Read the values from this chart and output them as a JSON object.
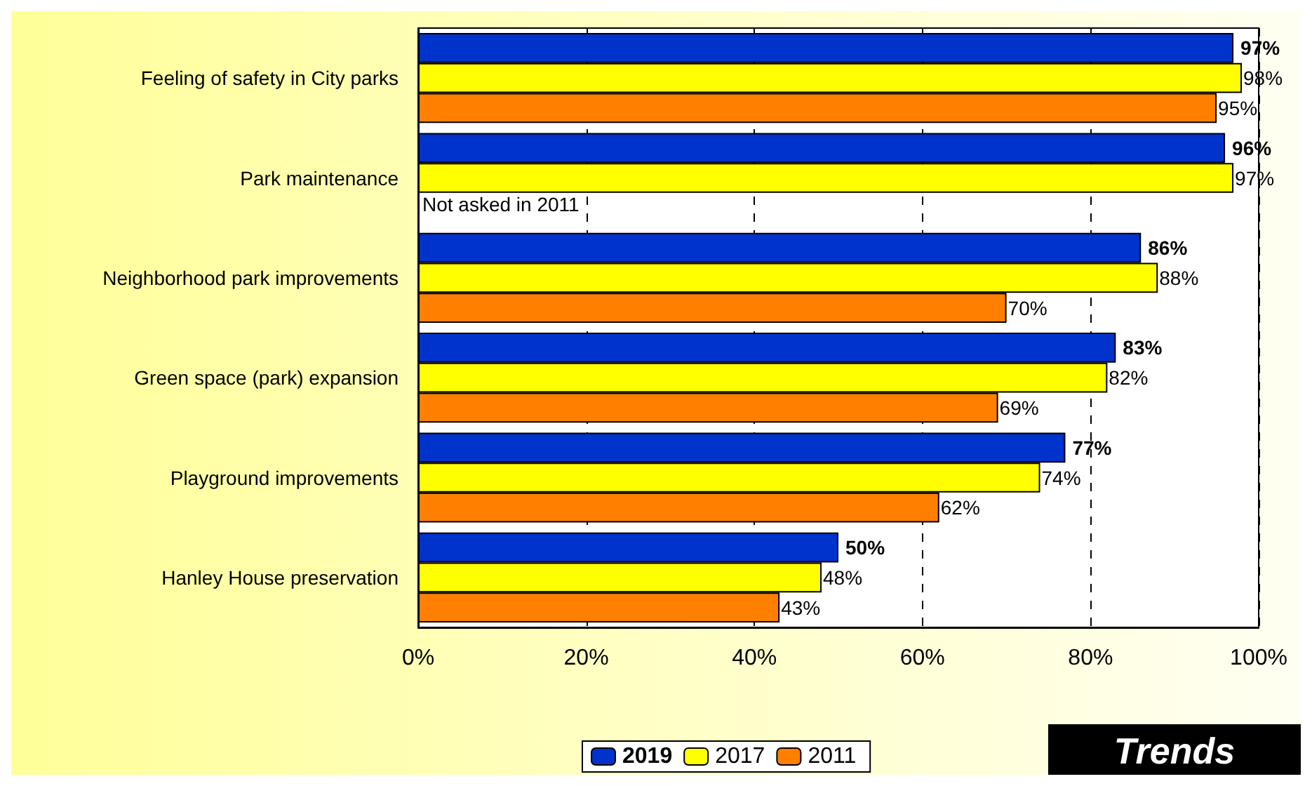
{
  "chart_data": {
    "type": "bar",
    "orientation": "horizontal",
    "categories": [
      "Feeling of safety in City parks",
      "Park maintenance",
      "Neighborhood park improvements",
      "Green space (park) expansion",
      "Playground improvements",
      "Hanley House preservation"
    ],
    "series": [
      {
        "name": "2019",
        "color": "#0033cc",
        "values": [
          97,
          96,
          86,
          83,
          77,
          50
        ],
        "value_labels": [
          "97%",
          "96%",
          "86%",
          "83%",
          "77%",
          "50%"
        ]
      },
      {
        "name": "2017",
        "color": "#ffff00",
        "values": [
          98,
          97,
          88,
          82,
          74,
          48
        ],
        "value_labels": [
          "98%",
          "97%",
          "88%",
          "82%",
          "74%",
          "48%"
        ]
      },
      {
        "name": "2011",
        "color": "#ff8000",
        "values": [
          95,
          null,
          70,
          69,
          62,
          43
        ],
        "value_labels": [
          "95%",
          null,
          "70%",
          "69%",
          "62%",
          "43%"
        ]
      }
    ],
    "xlim": [
      0,
      100
    ],
    "xticks": [
      {
        "value": 0,
        "label": "0%"
      },
      {
        "value": 20,
        "label": "20%"
      },
      {
        "value": 40,
        "label": "40%"
      },
      {
        "value": 60,
        "label": "60%"
      },
      {
        "value": 80,
        "label": "80%"
      },
      {
        "value": 100,
        "label": "100%"
      }
    ],
    "grid": "x",
    "legend": "bottom",
    "annotations": [
      {
        "text": "Not asked in 2011",
        "x": 0,
        "y": "Park maintenance"
      },
      "Trends"
    ]
  }
}
